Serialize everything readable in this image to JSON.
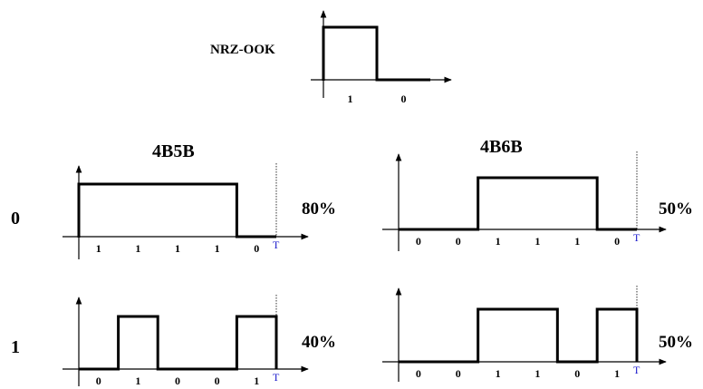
{
  "top": {
    "label": "NRZ-OOK",
    "bits": [
      "1",
      "0"
    ],
    "levels": [
      1,
      0
    ]
  },
  "headers": {
    "left": "4B5B",
    "right": "4B6B"
  },
  "row_labels": [
    "0",
    "1"
  ],
  "panels": [
    {
      "id": "4b5b-0",
      "bits": [
        "1",
        "1",
        "1",
        "1",
        "0"
      ],
      "levels": [
        1,
        1,
        1,
        1,
        0
      ],
      "percent": "80%",
      "period_label": "T"
    },
    {
      "id": "4b6b-0",
      "bits": [
        "0",
        "0",
        "1",
        "1",
        "1",
        "0"
      ],
      "levels": [
        0,
        0,
        1,
        1,
        1,
        0
      ],
      "percent": "50%",
      "period_label": "T"
    },
    {
      "id": "4b5b-1",
      "bits": [
        "0",
        "1",
        "0",
        "0",
        "1"
      ],
      "levels": [
        0,
        1,
        0,
        0,
        1
      ],
      "percent": "40%",
      "period_label": "T"
    },
    {
      "id": "4b6b-1",
      "bits": [
        "0",
        "0",
        "1",
        "1",
        "0",
        "1"
      ],
      "levels": [
        0,
        0,
        1,
        1,
        0,
        1
      ],
      "percent": "50%",
      "period_label": "T"
    }
  ],
  "colors": {
    "signal": "#000000",
    "period_marker": "#1a1acc"
  }
}
